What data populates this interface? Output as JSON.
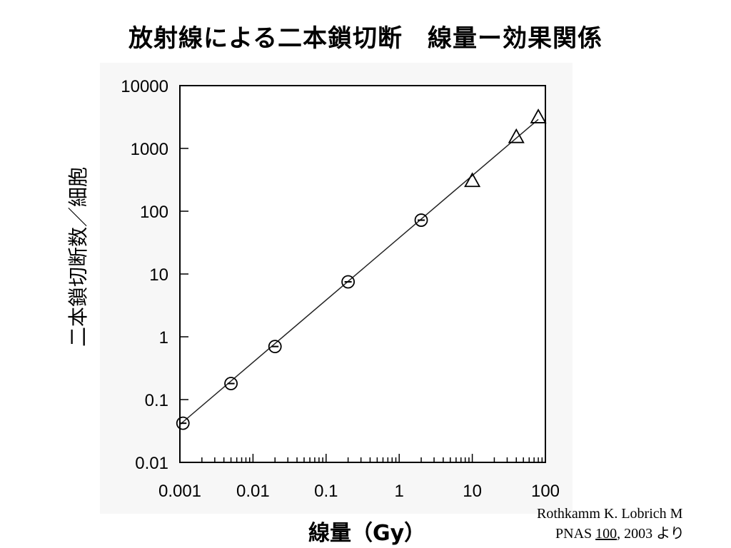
{
  "title": "放射線による二本鎖切断　線量ー効果関係",
  "chart_data": {
    "type": "scatter",
    "xscale": "log",
    "yscale": "log",
    "xlim": [
      0.001,
      100
    ],
    "ylim": [
      0.01,
      10000
    ],
    "xlabel": "線量（Gy）",
    "ylabel": "二本鎖切断数／細胞",
    "xticks": [
      "0.001",
      "0.01",
      "0.1",
      "1",
      "10",
      "100"
    ],
    "yticks": [
      "0.01",
      "0.1",
      "1",
      "10",
      "100",
      "1000",
      "10000"
    ],
    "series": [
      {
        "marker": "circle",
        "x": [
          0.0011,
          0.005,
          0.02,
          0.2,
          2
        ],
        "y": [
          0.042,
          0.18,
          0.7,
          7.5,
          72
        ]
      },
      {
        "marker": "triangle",
        "x": [
          10,
          40,
          80
        ],
        "y": [
          300,
          1500,
          3100
        ]
      }
    ],
    "fit_line": {
      "x": [
        0.001,
        80
      ],
      "y": [
        0.04,
        2900
      ]
    }
  },
  "citation": {
    "line1": "Rothkamm K. Lobrich M",
    "line2_pre": "PNAS ",
    "line2_vol": "100",
    "line2_post": ", 2003 より"
  }
}
